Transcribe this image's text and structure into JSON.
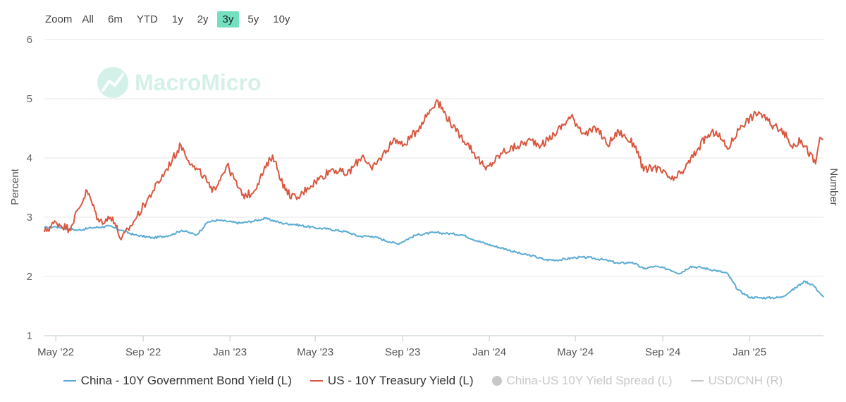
{
  "toolbar": {
    "zoom_label": "Zoom",
    "buttons": [
      "All",
      "6m",
      "YTD",
      "1y",
      "2y",
      "3y",
      "5y",
      "10y"
    ],
    "active": "3y"
  },
  "watermark": "MacroMicro",
  "colors": {
    "china": "#5aabd4",
    "us": "#d9573f",
    "muted": "#c8c8c8",
    "active_button": "#73e0c0"
  },
  "chart_data": {
    "type": "line",
    "ylabel_left": "Percent",
    "ylabel_right": "Number",
    "ylim": [
      1,
      6
    ],
    "yticks": [
      "1",
      "2",
      "3",
      "4",
      "5",
      "6"
    ],
    "xlim": [
      "2022-04-15",
      "2025-04-15"
    ],
    "xticks": [
      {
        "date": "2022-05-01",
        "label": "May '22"
      },
      {
        "date": "2022-09-01",
        "label": "Sep '22"
      },
      {
        "date": "2023-01-01",
        "label": "Jan '23"
      },
      {
        "date": "2023-05-01",
        "label": "May '23"
      },
      {
        "date": "2023-09-01",
        "label": "Sep '23"
      },
      {
        "date": "2024-01-01",
        "label": "Jan '24"
      },
      {
        "date": "2024-05-01",
        "label": "May '24"
      },
      {
        "date": "2024-09-01",
        "label": "Sep '24"
      },
      {
        "date": "2025-01-01",
        "label": "Jan '25"
      }
    ],
    "series": [
      {
        "name": "China - 10Y Government Bond Yield (L)",
        "color": "#5aabd4",
        "points": [
          [
            "2022-04-15",
            2.82
          ],
          [
            "2022-05-01",
            2.84
          ],
          [
            "2022-06-01",
            2.78
          ],
          [
            "2022-06-20",
            2.82
          ],
          [
            "2022-07-15",
            2.85
          ],
          [
            "2022-08-01",
            2.78
          ],
          [
            "2022-08-20",
            2.7
          ],
          [
            "2022-09-15",
            2.65
          ],
          [
            "2022-10-10",
            2.7
          ],
          [
            "2022-10-25",
            2.78
          ],
          [
            "2022-11-15",
            2.7
          ],
          [
            "2022-12-01",
            2.92
          ],
          [
            "2022-12-15",
            2.95
          ],
          [
            "2023-01-15",
            2.9
          ],
          [
            "2023-02-01",
            2.93
          ],
          [
            "2023-02-20",
            2.98
          ],
          [
            "2023-03-15",
            2.9
          ],
          [
            "2023-04-01",
            2.88
          ],
          [
            "2023-05-01",
            2.82
          ],
          [
            "2023-05-20",
            2.8
          ],
          [
            "2023-06-15",
            2.75
          ],
          [
            "2023-07-01",
            2.68
          ],
          [
            "2023-07-20",
            2.68
          ],
          [
            "2023-08-15",
            2.58
          ],
          [
            "2023-08-25",
            2.55
          ],
          [
            "2023-09-20",
            2.7
          ],
          [
            "2023-10-15",
            2.74
          ],
          [
            "2023-11-10",
            2.72
          ],
          [
            "2023-11-25",
            2.7
          ],
          [
            "2023-12-15",
            2.6
          ],
          [
            "2024-01-05",
            2.52
          ],
          [
            "2024-01-25",
            2.46
          ],
          [
            "2024-02-15",
            2.38
          ],
          [
            "2024-03-01",
            2.35
          ],
          [
            "2024-03-20",
            2.28
          ],
          [
            "2024-04-10",
            2.28
          ],
          [
            "2024-05-01",
            2.32
          ],
          [
            "2024-05-20",
            2.32
          ],
          [
            "2024-06-15",
            2.27
          ],
          [
            "2024-07-01",
            2.22
          ],
          [
            "2024-07-20",
            2.24
          ],
          [
            "2024-08-05",
            2.13
          ],
          [
            "2024-08-20",
            2.17
          ],
          [
            "2024-09-10",
            2.12
          ],
          [
            "2024-09-25",
            2.05
          ],
          [
            "2024-10-10",
            2.17
          ],
          [
            "2024-10-25",
            2.15
          ],
          [
            "2024-11-15",
            2.1
          ],
          [
            "2024-12-01",
            2.05
          ],
          [
            "2024-12-15",
            1.78
          ],
          [
            "2025-01-01",
            1.65
          ],
          [
            "2025-01-15",
            1.64
          ],
          [
            "2025-02-01",
            1.64
          ],
          [
            "2025-02-15",
            1.65
          ],
          [
            "2025-03-01",
            1.76
          ],
          [
            "2025-03-15",
            1.88
          ],
          [
            "2025-03-20",
            1.92
          ],
          [
            "2025-04-01",
            1.85
          ],
          [
            "2025-04-10",
            1.72
          ],
          [
            "2025-04-15",
            1.65
          ]
        ]
      },
      {
        "name": "US - 10Y Treasury Yield (L)",
        "color": "#d9573f",
        "points": [
          [
            "2022-04-15",
            2.75
          ],
          [
            "2022-05-01",
            2.92
          ],
          [
            "2022-05-20",
            2.8
          ],
          [
            "2022-06-14",
            3.45
          ],
          [
            "2022-07-01",
            2.92
          ],
          [
            "2022-07-20",
            3.0
          ],
          [
            "2022-08-01",
            2.62
          ],
          [
            "2022-08-20",
            2.95
          ],
          [
            "2022-09-15",
            3.45
          ],
          [
            "2022-10-01",
            3.75
          ],
          [
            "2022-10-24",
            4.22
          ],
          [
            "2022-11-10",
            3.85
          ],
          [
            "2022-11-25",
            3.7
          ],
          [
            "2022-12-07",
            3.42
          ],
          [
            "2022-12-28",
            3.88
          ],
          [
            "2023-01-18",
            3.37
          ],
          [
            "2023-02-01",
            3.4
          ],
          [
            "2023-03-02",
            4.05
          ],
          [
            "2023-03-20",
            3.45
          ],
          [
            "2023-04-05",
            3.3
          ],
          [
            "2023-04-20",
            3.5
          ],
          [
            "2023-05-25",
            3.82
          ],
          [
            "2023-06-15",
            3.72
          ],
          [
            "2023-07-07",
            4.05
          ],
          [
            "2023-07-20",
            3.8
          ],
          [
            "2023-08-21",
            4.33
          ],
          [
            "2023-09-01",
            4.2
          ],
          [
            "2023-09-20",
            4.45
          ],
          [
            "2023-10-19",
            4.98
          ],
          [
            "2023-11-15",
            4.45
          ],
          [
            "2023-12-01",
            4.25
          ],
          [
            "2023-12-27",
            3.8
          ],
          [
            "2024-01-20",
            4.1
          ],
          [
            "2024-02-10",
            4.2
          ],
          [
            "2024-02-28",
            4.3
          ],
          [
            "2024-03-15",
            4.22
          ],
          [
            "2024-04-01",
            4.4
          ],
          [
            "2024-04-25",
            4.7
          ],
          [
            "2024-05-15",
            4.4
          ],
          [
            "2024-06-01",
            4.5
          ],
          [
            "2024-06-15",
            4.22
          ],
          [
            "2024-07-01",
            4.45
          ],
          [
            "2024-07-25",
            4.2
          ],
          [
            "2024-08-05",
            3.78
          ],
          [
            "2024-08-20",
            3.85
          ],
          [
            "2024-09-16",
            3.62
          ],
          [
            "2024-10-01",
            3.8
          ],
          [
            "2024-10-20",
            4.15
          ],
          [
            "2024-11-01",
            4.35
          ],
          [
            "2024-11-15",
            4.45
          ],
          [
            "2024-12-01",
            4.15
          ],
          [
            "2024-12-20",
            4.55
          ],
          [
            "2025-01-14",
            4.78
          ],
          [
            "2025-02-01",
            4.55
          ],
          [
            "2025-02-15",
            4.5
          ],
          [
            "2025-03-01",
            4.2
          ],
          [
            "2025-03-15",
            4.3
          ],
          [
            "2025-04-04",
            3.9
          ],
          [
            "2025-04-10",
            4.35
          ],
          [
            "2025-04-15",
            4.32
          ]
        ]
      }
    ],
    "legend": [
      {
        "label": "China - 10Y Government Bond Yield (L)",
        "type": "line",
        "color": "#5aabd4",
        "enabled": true
      },
      {
        "label": "US - 10Y Treasury Yield (L)",
        "type": "line",
        "color": "#d9573f",
        "enabled": true
      },
      {
        "label": "China-US 10Y Yield Spread (L)",
        "type": "dot",
        "color": "#c8c8c8",
        "enabled": false
      },
      {
        "label": "USD/CNH (R)",
        "type": "line",
        "color": "#c8c8c8",
        "enabled": false
      }
    ]
  }
}
